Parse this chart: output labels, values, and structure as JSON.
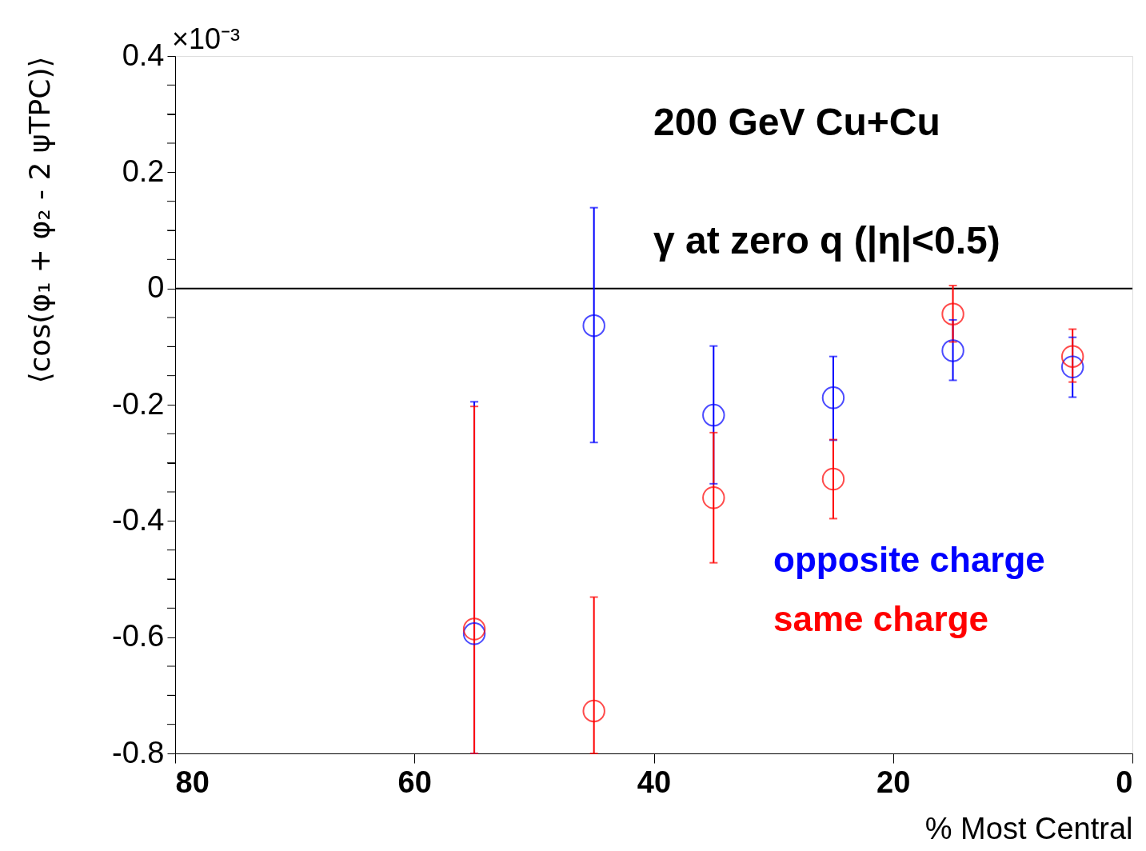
{
  "chart_data": {
    "type": "scatter",
    "xlabel": "% Most Central",
    "ylabel": "⟨cos(φ₁ + φ₂ - 2 ψTPC)⟩",
    "annotations": [
      "×10⁻³",
      "200 GeV Cu+Cu",
      "γ at zero q (|η|<0.5)"
    ],
    "x": [
      55,
      45,
      35,
      25,
      15,
      5
    ],
    "series": [
      {
        "name": "opposite charge",
        "color": "#0000ff",
        "values": [
          -0.594,
          -0.064,
          -0.218,
          -0.188,
          -0.107,
          -0.135
        ],
        "errors": [
          [
            -0.8,
            -0.195
          ],
          [
            -0.265,
            0.139
          ],
          [
            -0.336,
            -0.099
          ],
          [
            -0.261,
            -0.117
          ],
          [
            -0.158,
            -0.054
          ],
          [
            -0.187,
            -0.084
          ]
        ]
      },
      {
        "name": "same charge",
        "color": "#ff0000",
        "values": [
          -0.586,
          -0.727,
          -0.36,
          -0.328,
          -0.044,
          -0.117
        ],
        "errors": [
          [
            -0.8,
            -0.203
          ],
          [
            -0.8,
            -0.531
          ],
          [
            -0.472,
            -0.248
          ],
          [
            -0.396,
            -0.26
          ],
          [
            -0.092,
            0.005
          ],
          [
            -0.161,
            -0.07
          ]
        ]
      }
    ],
    "xlim": [
      80,
      0
    ],
    "xticks": [
      80,
      60,
      40,
      20,
      0
    ],
    "ylim": [
      -0.8,
      0.4
    ],
    "yticks": [
      -0.8,
      {
        "value": -0.75,
        "label": null
      },
      {
        "value": -0.7,
        "label": null
      },
      {
        "value": -0.65,
        "label": null
      },
      -0.6,
      {
        "value": -0.55,
        "label": null
      },
      {
        "value": -0.5,
        "label": null
      },
      {
        "value": -0.45,
        "label": null
      },
      -0.4,
      {
        "value": -0.35,
        "label": null
      },
      {
        "value": -0.3,
        "label": null
      },
      {
        "value": -0.25,
        "label": null
      },
      -0.2,
      {
        "value": -0.15,
        "label": null
      },
      {
        "value": -0.1,
        "label": null
      },
      {
        "value": -0.05,
        "label": null
      },
      0,
      {
        "value": 0.05,
        "label": null
      },
      {
        "value": 0.1,
        "label": null
      },
      {
        "value": 0.15,
        "label": null
      },
      0.2,
      {
        "value": 0.25,
        "label": null
      },
      {
        "value": 0.3,
        "label": null
      },
      {
        "value": 0.35,
        "label": null
      },
      0.4
    ],
    "ref_lines": [
      {
        "axis": "y",
        "value": 0,
        "color": "#000000"
      }
    ],
    "marker": "circle",
    "grid": false,
    "legend": "bottom right"
  }
}
